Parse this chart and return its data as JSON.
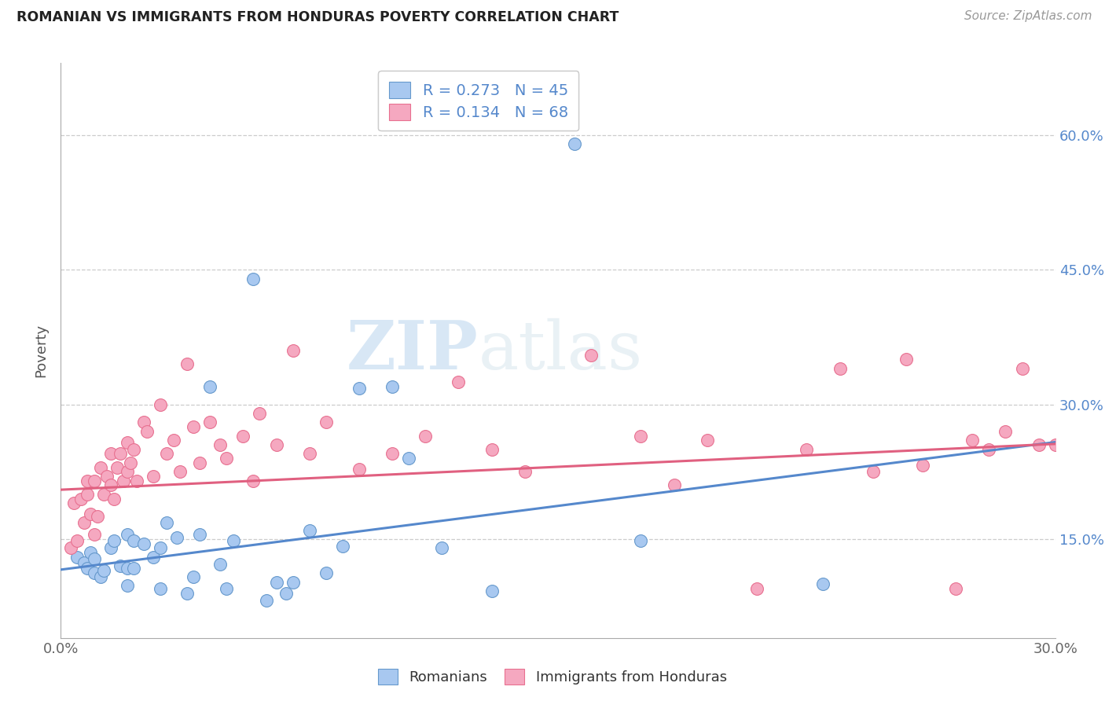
{
  "title": "ROMANIAN VS IMMIGRANTS FROM HONDURAS POVERTY CORRELATION CHART",
  "source": "Source: ZipAtlas.com",
  "ylabel": "Poverty",
  "ytick_vals": [
    0.15,
    0.3,
    0.45,
    0.6
  ],
  "ytick_labels": [
    "15.0%",
    "30.0%",
    "45.0%",
    "60.0%"
  ],
  "xtick_vals": [
    0.0,
    0.3
  ],
  "xtick_labels": [
    "0.0%",
    "30.0%"
  ],
  "xlim": [
    0.0,
    0.3
  ],
  "ylim": [
    0.04,
    0.68
  ],
  "legend_blue_R": "0.273",
  "legend_blue_N": "45",
  "legend_pink_R": "0.134",
  "legend_pink_N": "68",
  "blue_fill": "#a8c8f0",
  "pink_fill": "#f5a8c0",
  "blue_edge": "#6699cc",
  "pink_edge": "#e87090",
  "blue_line_color": "#5588cc",
  "pink_line_color": "#e06080",
  "watermark_zip": "ZIP",
  "watermark_atlas": "atlas",
  "legend_label_blue": "Romanians",
  "legend_label_pink": "Immigrants from Honduras",
  "blue_line_x": [
    0.0,
    0.3
  ],
  "blue_line_y": [
    0.116,
    0.258
  ],
  "pink_line_x": [
    0.0,
    0.3
  ],
  "pink_line_y": [
    0.205,
    0.256
  ],
  "blue_x": [
    0.005,
    0.007,
    0.008,
    0.009,
    0.01,
    0.01,
    0.012,
    0.013,
    0.015,
    0.016,
    0.018,
    0.02,
    0.02,
    0.02,
    0.022,
    0.022,
    0.025,
    0.028,
    0.03,
    0.03,
    0.032,
    0.035,
    0.038,
    0.04,
    0.042,
    0.045,
    0.048,
    0.05,
    0.052,
    0.058,
    0.062,
    0.065,
    0.068,
    0.07,
    0.075,
    0.08,
    0.085,
    0.09,
    0.1,
    0.105,
    0.115,
    0.13,
    0.155,
    0.175,
    0.23
  ],
  "blue_y": [
    0.13,
    0.124,
    0.118,
    0.135,
    0.112,
    0.128,
    0.108,
    0.115,
    0.14,
    0.148,
    0.12,
    0.098,
    0.118,
    0.155,
    0.118,
    0.148,
    0.145,
    0.13,
    0.095,
    0.14,
    0.168,
    0.152,
    0.09,
    0.108,
    0.155,
    0.32,
    0.122,
    0.095,
    0.148,
    0.44,
    0.082,
    0.102,
    0.09,
    0.102,
    0.16,
    0.112,
    0.142,
    0.318,
    0.32,
    0.24,
    0.14,
    0.092,
    0.59,
    0.148,
    0.1
  ],
  "pink_x": [
    0.003,
    0.004,
    0.005,
    0.006,
    0.007,
    0.008,
    0.008,
    0.009,
    0.01,
    0.01,
    0.011,
    0.012,
    0.013,
    0.014,
    0.015,
    0.015,
    0.016,
    0.017,
    0.018,
    0.019,
    0.02,
    0.02,
    0.021,
    0.022,
    0.023,
    0.025,
    0.026,
    0.028,
    0.03,
    0.032,
    0.034,
    0.036,
    0.038,
    0.04,
    0.042,
    0.045,
    0.048,
    0.05,
    0.055,
    0.058,
    0.06,
    0.065,
    0.07,
    0.075,
    0.08,
    0.09,
    0.1,
    0.11,
    0.12,
    0.13,
    0.14,
    0.16,
    0.175,
    0.185,
    0.195,
    0.21,
    0.225,
    0.235,
    0.245,
    0.255,
    0.26,
    0.27,
    0.275,
    0.28,
    0.285,
    0.29,
    0.295,
    0.3
  ],
  "pink_y": [
    0.14,
    0.19,
    0.148,
    0.195,
    0.168,
    0.2,
    0.215,
    0.178,
    0.155,
    0.215,
    0.175,
    0.23,
    0.2,
    0.22,
    0.21,
    0.245,
    0.195,
    0.23,
    0.245,
    0.215,
    0.225,
    0.258,
    0.235,
    0.25,
    0.215,
    0.28,
    0.27,
    0.22,
    0.3,
    0.245,
    0.26,
    0.225,
    0.345,
    0.275,
    0.235,
    0.28,
    0.255,
    0.24,
    0.265,
    0.215,
    0.29,
    0.255,
    0.36,
    0.245,
    0.28,
    0.228,
    0.245,
    0.265,
    0.325,
    0.25,
    0.225,
    0.355,
    0.265,
    0.21,
    0.26,
    0.095,
    0.25,
    0.34,
    0.225,
    0.35,
    0.232,
    0.095,
    0.26,
    0.25,
    0.27,
    0.34,
    0.255,
    0.255
  ]
}
